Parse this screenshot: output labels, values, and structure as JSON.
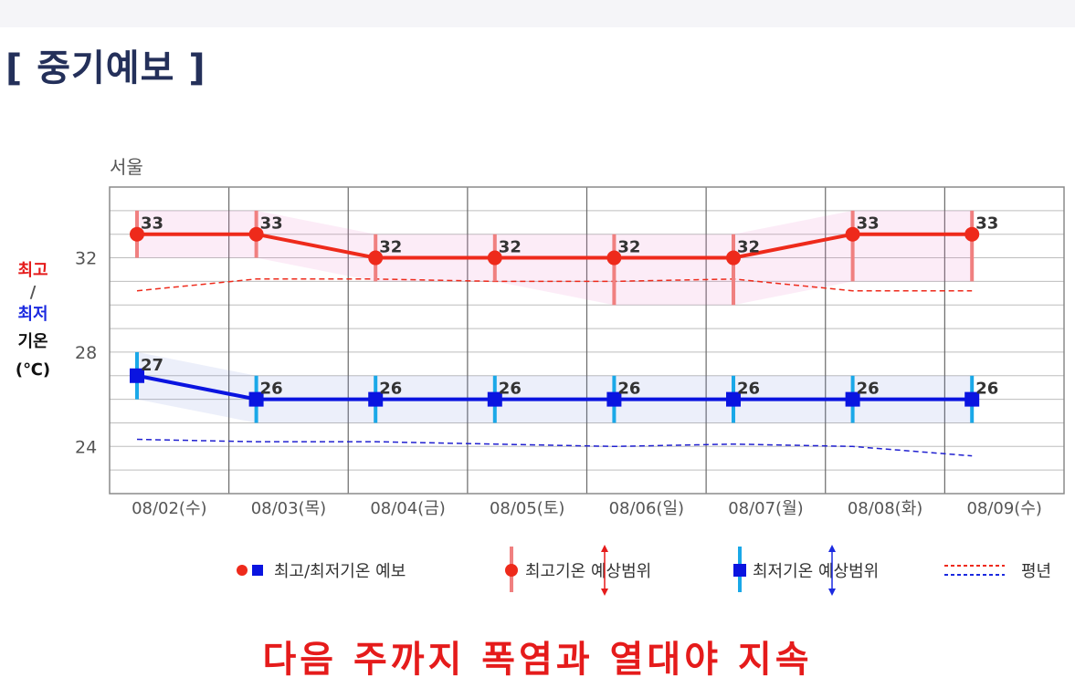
{
  "page": {
    "title": "[ 중기예보 ]",
    "caption": "다음 주까지 폭염과 열대야 지속"
  },
  "chart_data": {
    "type": "line",
    "title": "서울",
    "ylabel": [
      "최고",
      "/",
      "최저",
      "기온",
      "(℃)"
    ],
    "yticks": [
      24,
      28,
      32
    ],
    "ylim": [
      22,
      35
    ],
    "categories": [
      "08/02(수)",
      "08/03(목)",
      "08/04(금)",
      "08/05(토)",
      "08/06(일)",
      "08/07(월)",
      "08/08(화)",
      "08/09(수)"
    ],
    "series": [
      {
        "name": "최고기온",
        "color": "#ee2a1b",
        "marker": "circle",
        "values": [
          33,
          33,
          32,
          32,
          32,
          32,
          33,
          33
        ],
        "range_low": [
          32,
          32,
          31,
          31,
          30,
          30,
          31,
          31
        ],
        "range_high": [
          34,
          34,
          33,
          33,
          33,
          33,
          34,
          34
        ]
      },
      {
        "name": "최저기온",
        "color": "#0a14e0",
        "marker": "square",
        "values": [
          27,
          26,
          26,
          26,
          26,
          26,
          26,
          26
        ],
        "range_low": [
          26,
          25,
          25,
          25,
          25,
          25,
          25,
          25
        ],
        "range_high": [
          28,
          27,
          27,
          27,
          27,
          27,
          27,
          27
        ]
      },
      {
        "name": "평년 최고",
        "color": "#ee2a1b",
        "style": "dashed",
        "values": [
          30.6,
          31.1,
          31.1,
          31.0,
          31.0,
          31.1,
          30.6,
          30.6
        ]
      },
      {
        "name": "평년 최저",
        "color": "#2020d0",
        "style": "dashed",
        "values": [
          24.3,
          24.2,
          24.2,
          24.1,
          24.0,
          24.1,
          24.0,
          23.6
        ]
      }
    ],
    "legend": [
      {
        "label": "최고/최저기온 예보"
      },
      {
        "label": "최고기온 예상범위"
      },
      {
        "label": "최저기온 예상범위"
      },
      {
        "label": "평년"
      }
    ],
    "legend_position": "bottom",
    "grid": true
  }
}
